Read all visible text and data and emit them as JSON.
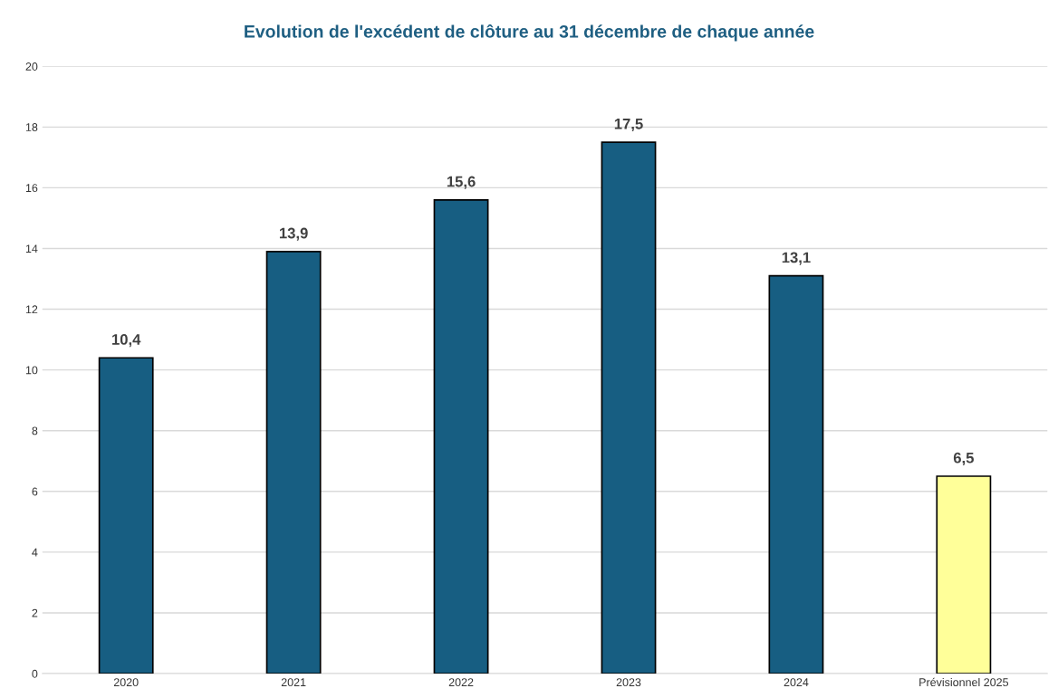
{
  "chart_data": {
    "type": "bar",
    "title": "Evolution de l'excédent de clôture au 31 décembre de chaque année",
    "categories": [
      "2020",
      "2021",
      "2022",
      "2023",
      "2024",
      "Prévisionnel 2025"
    ],
    "values": [
      10.4,
      13.9,
      15.6,
      17.5,
      13.1,
      6.5
    ],
    "colors": [
      "#175e82",
      "#175e82",
      "#175e82",
      "#175e82",
      "#175e82",
      "#ffff99"
    ],
    "value_labels": [
      "10,4",
      "13,9",
      "15,6",
      "17,5",
      "13,1",
      "6,5"
    ],
    "ylim": [
      0,
      20
    ],
    "yticks": [
      0,
      2,
      4,
      6,
      8,
      10,
      12,
      14,
      16,
      18,
      20
    ],
    "grid": "y",
    "legend": false
  }
}
